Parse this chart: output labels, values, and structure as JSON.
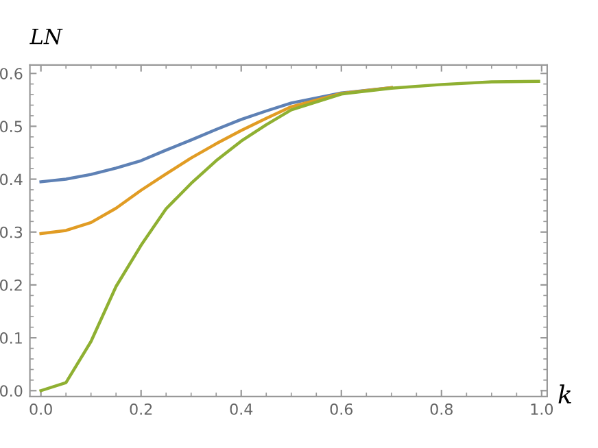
{
  "chart_data": {
    "type": "line",
    "xlabel": "k",
    "ylabel": "LN",
    "x": [
      0,
      0.05,
      0.1,
      0.15,
      0.2,
      0.25,
      0.3,
      0.35,
      0.4,
      0.45,
      0.5,
      0.6,
      0.7,
      0.8,
      0.9,
      0.994
    ],
    "series": [
      {
        "color": "#5e81b5",
        "values": [
          0.395,
          0.4,
          0.409,
          0.421,
          0.435,
          0.455,
          0.474,
          0.494,
          0.513,
          0.529,
          0.544,
          0.563,
          0.573,
          null,
          null,
          null
        ]
      },
      {
        "color": "#e19c24",
        "values": [
          0.297,
          0.303,
          0.318,
          0.345,
          0.379,
          0.41,
          0.44,
          0.467,
          0.492,
          0.515,
          0.537,
          0.562,
          0.573,
          null,
          null,
          null
        ]
      },
      {
        "color": "#8fb032",
        "values": [
          0,
          0.015,
          0.093,
          0.197,
          0.275,
          0.344,
          0.392,
          0.435,
          0.472,
          0.503,
          0.531,
          0.561,
          0.572,
          0.579,
          0.584,
          0.585
        ]
      }
    ],
    "xlim": [
      -0.022,
      1.011
    ],
    "ylim": [
      -0.011,
      0.616
    ],
    "xticks": [
      {
        "value": 0,
        "label": "0.0"
      },
      0.2,
      0.4,
      0.6,
      0.8,
      {
        "value": 1,
        "label": "1.0"
      }
    ],
    "yticks": [
      {
        "value": 0,
        "label": "0.0"
      },
      0.1,
      0.2,
      0.3,
      0.4,
      0.5,
      0.6
    ],
    "grid": false,
    "legend": false
  }
}
